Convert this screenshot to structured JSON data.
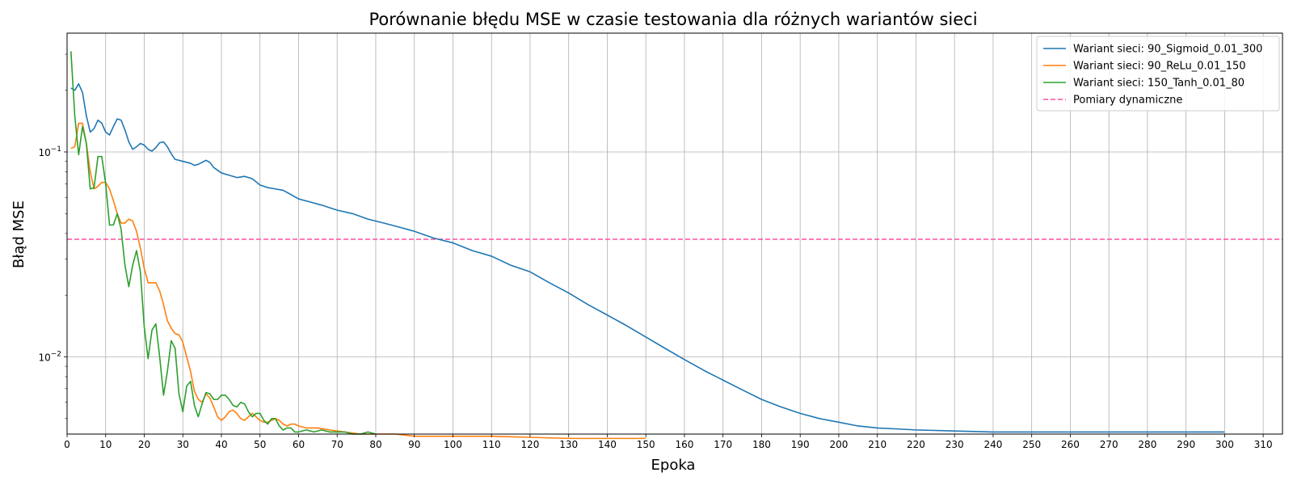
{
  "chart_data": {
    "type": "line",
    "title": "Porównanie błędu MSE w czasie testowania dla różnych wariantów sieci",
    "xlabel": "Epoka",
    "ylabel": "Błąd MSE",
    "xlim": [
      0,
      315
    ],
    "ylim": [
      0.0042,
      0.38
    ],
    "yscale": "log",
    "grid": true,
    "legend_position": "top-right",
    "x_ticks": [
      0,
      10,
      20,
      30,
      40,
      50,
      60,
      70,
      80,
      90,
      100,
      110,
      120,
      130,
      140,
      150,
      160,
      170,
      180,
      190,
      200,
      210,
      220,
      230,
      240,
      250,
      260,
      270,
      280,
      290,
      300,
      310
    ],
    "y_ticks": [
      {
        "value": 0.1,
        "base": "10",
        "exp": "−1"
      },
      {
        "value": 0.01,
        "base": "10",
        "exp": "−2"
      }
    ],
    "series": [
      {
        "name": "Wariant sieci: 90_Sigmoid_0.01_300",
        "color": "#1f77b4",
        "points": [
          [
            1,
            0.205
          ],
          [
            2,
            0.2
          ],
          [
            3,
            0.215
          ],
          [
            4,
            0.195
          ],
          [
            5,
            0.15
          ],
          [
            6,
            0.125
          ],
          [
            7,
            0.13
          ],
          [
            8,
            0.143
          ],
          [
            9,
            0.138
          ],
          [
            10,
            0.125
          ],
          [
            11,
            0.121
          ],
          [
            12,
            0.133
          ],
          [
            13,
            0.145
          ],
          [
            14,
            0.143
          ],
          [
            15,
            0.128
          ],
          [
            16,
            0.112
          ],
          [
            17,
            0.103
          ],
          [
            18,
            0.106
          ],
          [
            19,
            0.11
          ],
          [
            20,
            0.108
          ],
          [
            21,
            0.103
          ],
          [
            22,
            0.101
          ],
          [
            23,
            0.105
          ],
          [
            24,
            0.111
          ],
          [
            25,
            0.112
          ],
          [
            26,
            0.106
          ],
          [
            27,
            0.098
          ],
          [
            28,
            0.092
          ],
          [
            30,
            0.09
          ],
          [
            32,
            0.088
          ],
          [
            33,
            0.086
          ],
          [
            34,
            0.087
          ],
          [
            36,
            0.091
          ],
          [
            37,
            0.089
          ],
          [
            38,
            0.084
          ],
          [
            40,
            0.079
          ],
          [
            42,
            0.077
          ],
          [
            44,
            0.075
          ],
          [
            46,
            0.076
          ],
          [
            48,
            0.074
          ],
          [
            50,
            0.069
          ],
          [
            52,
            0.067
          ],
          [
            54,
            0.066
          ],
          [
            56,
            0.065
          ],
          [
            58,
            0.062
          ],
          [
            60,
            0.059
          ],
          [
            63,
            0.057
          ],
          [
            66,
            0.055
          ],
          [
            70,
            0.052
          ],
          [
            74,
            0.05
          ],
          [
            78,
            0.047
          ],
          [
            82,
            0.045
          ],
          [
            86,
            0.043
          ],
          [
            90,
            0.041
          ],
          [
            95,
            0.038
          ],
          [
            100,
            0.036
          ],
          [
            105,
            0.033
          ],
          [
            110,
            0.031
          ],
          [
            115,
            0.028
          ],
          [
            120,
            0.026
          ],
          [
            125,
            0.023
          ],
          [
            130,
            0.0205
          ],
          [
            135,
            0.018
          ],
          [
            140,
            0.016
          ],
          [
            145,
            0.0142
          ],
          [
            150,
            0.0125
          ],
          [
            155,
            0.011
          ],
          [
            160,
            0.0097
          ],
          [
            165,
            0.0086
          ],
          [
            170,
            0.0077
          ],
          [
            175,
            0.0069
          ],
          [
            180,
            0.0062
          ],
          [
            185,
            0.0057
          ],
          [
            190,
            0.0053
          ],
          [
            195,
            0.005
          ],
          [
            200,
            0.0048
          ],
          [
            205,
            0.0046
          ],
          [
            210,
            0.0045
          ],
          [
            215,
            0.00445
          ],
          [
            220,
            0.0044
          ],
          [
            230,
            0.00435
          ],
          [
            240,
            0.0043
          ],
          [
            250,
            0.0043
          ],
          [
            260,
            0.0043
          ],
          [
            270,
            0.0043
          ],
          [
            280,
            0.0043
          ],
          [
            290,
            0.0043
          ],
          [
            300,
            0.0043
          ]
        ]
      },
      {
        "name": "Wariant sieci: 90_ReLu_0.01_150",
        "color": "#ff7f0e",
        "points": [
          [
            1,
            0.104
          ],
          [
            2,
            0.106
          ],
          [
            3,
            0.138
          ],
          [
            4,
            0.138
          ],
          [
            5,
            0.11
          ],
          [
            6,
            0.08
          ],
          [
            7,
            0.066
          ],
          [
            8,
            0.068
          ],
          [
            9,
            0.071
          ],
          [
            10,
            0.071
          ],
          [
            11,
            0.066
          ],
          [
            12,
            0.058
          ],
          [
            13,
            0.05
          ],
          [
            14,
            0.045
          ],
          [
            15,
            0.045
          ],
          [
            16,
            0.047
          ],
          [
            17,
            0.046
          ],
          [
            18,
            0.041
          ],
          [
            19,
            0.034
          ],
          [
            20,
            0.027
          ],
          [
            21,
            0.023
          ],
          [
            22,
            0.023
          ],
          [
            23,
            0.023
          ],
          [
            24,
            0.021
          ],
          [
            25,
            0.018
          ],
          [
            26,
            0.015
          ],
          [
            27,
            0.0138
          ],
          [
            28,
            0.013
          ],
          [
            29,
            0.0128
          ],
          [
            30,
            0.0118
          ],
          [
            31,
            0.01
          ],
          [
            32,
            0.0085
          ],
          [
            33,
            0.0068
          ],
          [
            34,
            0.0062
          ],
          [
            35,
            0.006
          ],
          [
            36,
            0.0066
          ],
          [
            37,
            0.0063
          ],
          [
            38,
            0.0057
          ],
          [
            39,
            0.0051
          ],
          [
            40,
            0.0049
          ],
          [
            41,
            0.0051
          ],
          [
            42,
            0.0054
          ],
          [
            43,
            0.0055
          ],
          [
            44,
            0.0053
          ],
          [
            45,
            0.005
          ],
          [
            46,
            0.0049
          ],
          [
            47,
            0.0051
          ],
          [
            48,
            0.0053
          ],
          [
            49,
            0.0051
          ],
          [
            50,
            0.0049
          ],
          [
            51,
            0.0048
          ],
          [
            52,
            0.0048
          ],
          [
            53,
            0.0049
          ],
          [
            54,
            0.005
          ],
          [
            55,
            0.0049
          ],
          [
            56,
            0.0047
          ],
          [
            57,
            0.0046
          ],
          [
            58,
            0.0047
          ],
          [
            59,
            0.0047
          ],
          [
            60,
            0.0046
          ],
          [
            62,
            0.0045
          ],
          [
            65,
            0.0045
          ],
          [
            68,
            0.0044
          ],
          [
            72,
            0.0043
          ],
          [
            76,
            0.0042
          ],
          [
            80,
            0.0042
          ],
          [
            85,
            0.0042
          ],
          [
            90,
            0.0041
          ],
          [
            100,
            0.0041
          ],
          [
            110,
            0.0041
          ],
          [
            120,
            0.00405
          ],
          [
            130,
            0.004
          ],
          [
            140,
            0.004
          ],
          [
            150,
            0.004
          ]
        ]
      },
      {
        "name": "Wariant sieci: 150_Tanh_0.01_80",
        "color": "#2ca02c",
        "points": [
          [
            1,
            0.31
          ],
          [
            2,
            0.15
          ],
          [
            3,
            0.097
          ],
          [
            4,
            0.133
          ],
          [
            5,
            0.11
          ],
          [
            6,
            0.066
          ],
          [
            7,
            0.067
          ],
          [
            8,
            0.095
          ],
          [
            9,
            0.095
          ],
          [
            10,
            0.07
          ],
          [
            11,
            0.044
          ],
          [
            12,
            0.044
          ],
          [
            13,
            0.05
          ],
          [
            14,
            0.042
          ],
          [
            15,
            0.028
          ],
          [
            16,
            0.022
          ],
          [
            17,
            0.028
          ],
          [
            18,
            0.033
          ],
          [
            19,
            0.026
          ],
          [
            20,
            0.014
          ],
          [
            21,
            0.0098
          ],
          [
            22,
            0.0135
          ],
          [
            23,
            0.0145
          ],
          [
            24,
            0.01
          ],
          [
            25,
            0.0065
          ],
          [
            26,
            0.0085
          ],
          [
            27,
            0.012
          ],
          [
            28,
            0.011
          ],
          [
            29,
            0.0066
          ],
          [
            30,
            0.0054
          ],
          [
            31,
            0.0072
          ],
          [
            32,
            0.0076
          ],
          [
            33,
            0.0058
          ],
          [
            34,
            0.0051
          ],
          [
            35,
            0.0059
          ],
          [
            36,
            0.0067
          ],
          [
            37,
            0.0066
          ],
          [
            38,
            0.0062
          ],
          [
            39,
            0.0062
          ],
          [
            40,
            0.0065
          ],
          [
            41,
            0.0065
          ],
          [
            42,
            0.0062
          ],
          [
            43,
            0.0058
          ],
          [
            44,
            0.0057
          ],
          [
            45,
            0.006
          ],
          [
            46,
            0.0059
          ],
          [
            47,
            0.0054
          ],
          [
            48,
            0.0051
          ],
          [
            49,
            0.0053
          ],
          [
            50,
            0.0053
          ],
          [
            51,
            0.0049
          ],
          [
            52,
            0.0047
          ],
          [
            53,
            0.005
          ],
          [
            54,
            0.005
          ],
          [
            55,
            0.0046
          ],
          [
            56,
            0.0044
          ],
          [
            57,
            0.0045
          ],
          [
            58,
            0.0045
          ],
          [
            59,
            0.0043
          ],
          [
            60,
            0.0043
          ],
          [
            62,
            0.0044
          ],
          [
            64,
            0.0043
          ],
          [
            66,
            0.0044
          ],
          [
            68,
            0.0043
          ],
          [
            70,
            0.0043
          ],
          [
            72,
            0.0043
          ],
          [
            74,
            0.0042
          ],
          [
            76,
            0.0042
          ],
          [
            78,
            0.0043
          ],
          [
            80,
            0.0042
          ]
        ]
      }
    ],
    "reference_line": {
      "name": "Pomiary dynamiczne",
      "value": 0.0375,
      "color": "#ff4fa0",
      "style": "dashed"
    }
  }
}
